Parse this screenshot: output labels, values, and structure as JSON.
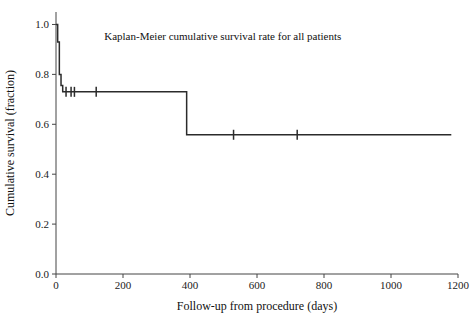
{
  "chart_data": {
    "type": "line",
    "title": "Kaplan-Meier cumulative survival rate for all patients",
    "x_label": "Follow-up from procedure (days)",
    "y_label": "Cumulative survival (fraction)",
    "xlim": [
      0,
      1200
    ],
    "ylim": [
      0.0,
      1.05
    ],
    "xticks": [
      0,
      200,
      400,
      600,
      800,
      1000,
      1200
    ],
    "yticks": [
      {
        "value": 0.0,
        "label": "0.0"
      },
      0.2,
      0.4,
      0.6,
      0.8,
      {
        "value": 1.0,
        "label": "1.0"
      }
    ],
    "grid": false,
    "color": "#2b2b2b",
    "series": [
      {
        "type": "line",
        "x": [
          0,
          5,
          5,
          10,
          10,
          15,
          15,
          20,
          20,
          390,
          390,
          1180
        ],
        "values": [
          1.0,
          1.0,
          0.93,
          0.93,
          0.8,
          0.8,
          0.755,
          0.755,
          0.73,
          0.73,
          0.558,
          0.558
        ]
      },
      {
        "type": "scatter",
        "marker": "tick",
        "x": [
          30,
          45,
          55,
          120,
          530,
          720
        ],
        "values": [
          0.73,
          0.73,
          0.73,
          0.73,
          0.558,
          0.558
        ]
      }
    ]
  }
}
